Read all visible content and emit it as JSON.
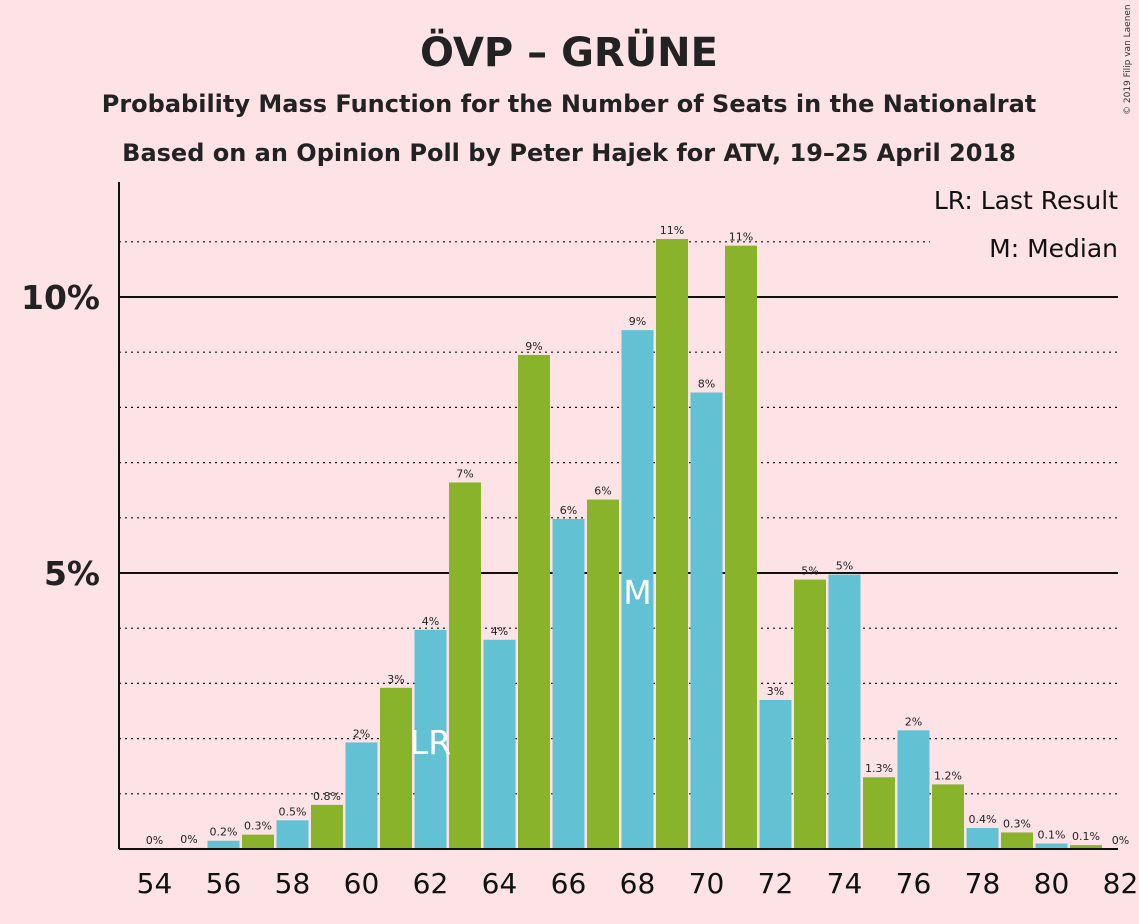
{
  "chart_data": {
    "type": "bar",
    "title": "ÖVP – GRÜNE",
    "subtitle_1": "Probability Mass Function for the Number of Seats in the Nationalrat",
    "subtitle_2": "Based on an Opinion Poll by Peter Hajek for ATV, 19–25 April 2018",
    "copyright": "© 2019 Filip van Laenen",
    "legend": [
      "LR: Last Result",
      "M: Median"
    ],
    "x": [
      54,
      55,
      56,
      57,
      58,
      59,
      60,
      61,
      62,
      63,
      64,
      65,
      66,
      67,
      68,
      69,
      70,
      71,
      72,
      73,
      74,
      75,
      76,
      77,
      78,
      79,
      80,
      81,
      82
    ],
    "values": [
      0.0,
      0.02,
      0.15,
      0.26,
      0.52,
      0.8,
      1.93,
      2.92,
      3.97,
      6.64,
      3.79,
      8.95,
      5.98,
      6.33,
      9.4,
      11.05,
      8.27,
      10.93,
      2.7,
      4.88,
      4.97,
      1.3,
      2.15,
      1.17,
      0.38,
      0.3,
      0.1,
      0.07,
      0.0
    ],
    "labels": [
      "0%",
      "0%",
      "0.2%",
      "0.3%",
      "0.5%",
      "0.8%",
      "2%",
      "3%",
      "4%",
      "7%",
      "4%",
      "9%",
      "6%",
      "6%",
      "9%",
      "11%",
      "8%",
      "11%",
      "3%",
      "5%",
      "5%",
      "1.3%",
      "2%",
      "1.2%",
      "0.4%",
      "0.3%",
      "0.1%",
      "0.1%",
      "0%"
    ],
    "x_tick_labels": [
      "54",
      "56",
      "58",
      "60",
      "62",
      "64",
      "66",
      "68",
      "70",
      "72",
      "74",
      "76",
      "78",
      "80",
      "82"
    ],
    "y_tick_labels": [
      "5%",
      "10%"
    ],
    "ylim": [
      0,
      12
    ],
    "last_result_seat": 62,
    "last_result_marker": "LR",
    "median_seat": 68,
    "median_marker": "M",
    "colors": {
      "green": "#88b32a",
      "blue": "#62c2d3",
      "background": "#fde3e6"
    }
  }
}
